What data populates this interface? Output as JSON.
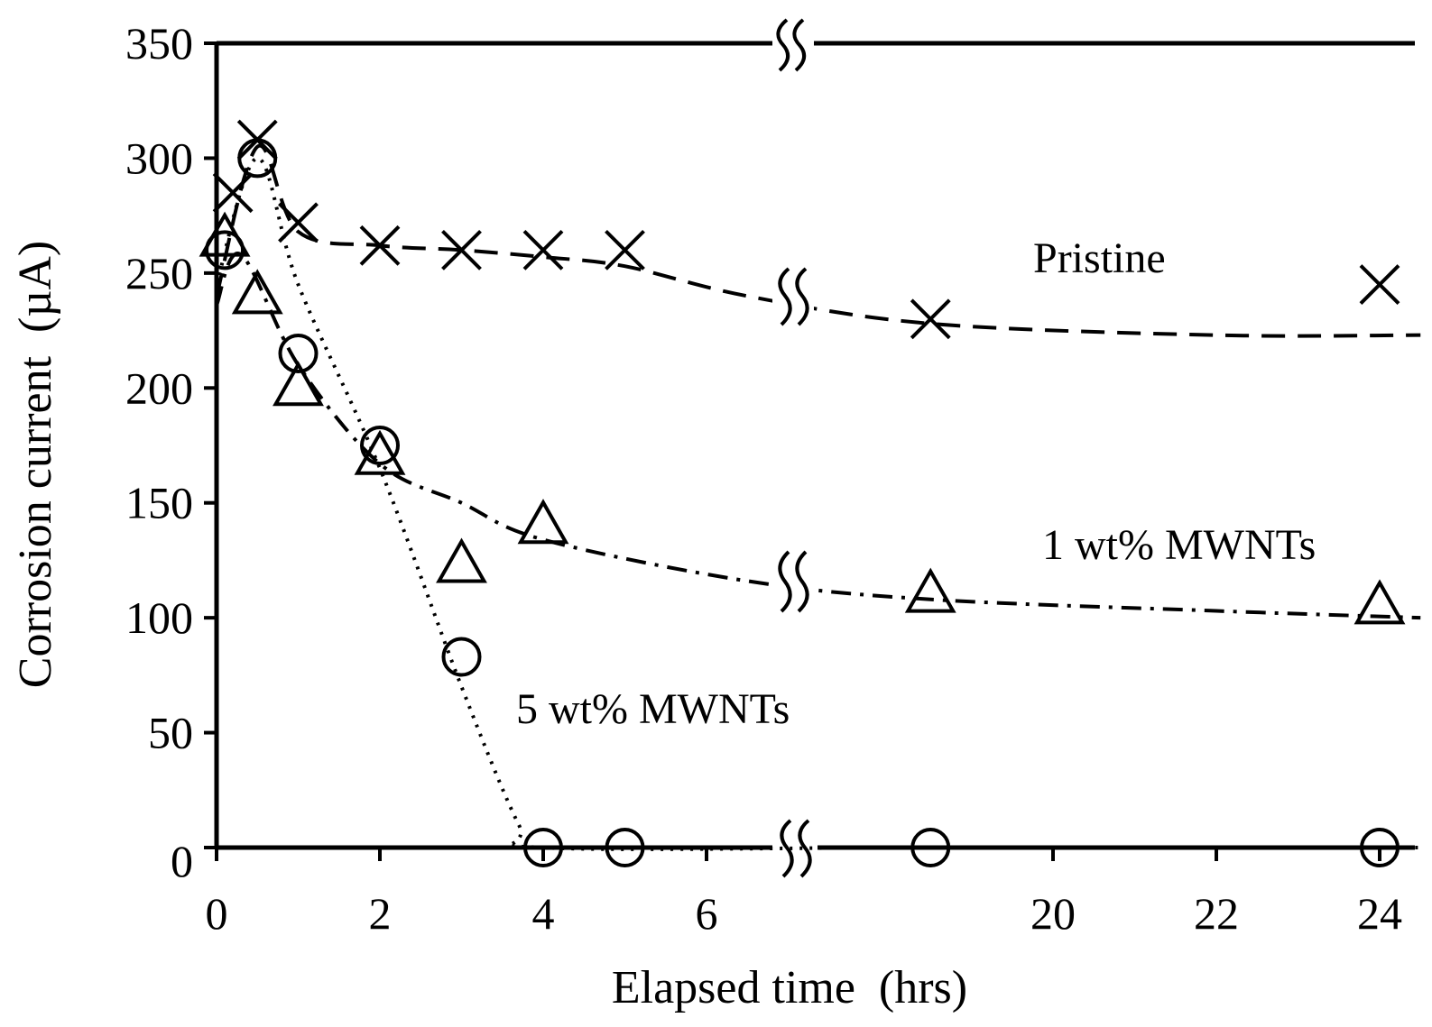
{
  "chart_data": {
    "type": "scatter",
    "title": "",
    "xlabel": "Elapsed time  (hrs)",
    "ylabel": "Corrosion current  (µA)",
    "ylim": [
      0,
      350
    ],
    "x_axis_break": "between 6 and 20 hrs",
    "x_ticks": [
      "0",
      "2",
      "4",
      "6",
      "20",
      "22",
      "24"
    ],
    "y_ticks": [
      "0",
      "50",
      "100",
      "150",
      "200",
      "250",
      "300",
      "350"
    ],
    "grid": false,
    "legend": "inline labels",
    "series": [
      {
        "name": "Pristine",
        "marker": "x",
        "line_style": "dashed",
        "x": [
          0.2,
          0.5,
          1,
          2,
          3,
          4,
          5,
          "~18.5",
          24
        ],
        "y": [
          285,
          308,
          272,
          262,
          260,
          260,
          260,
          230,
          245
        ]
      },
      {
        "name": "1 wt% MWNTs",
        "marker": "triangle",
        "line_style": "dash-dot",
        "x": [
          0.1,
          0.5,
          1,
          2,
          3,
          4,
          "~18.5",
          24
        ],
        "y": [
          265,
          240,
          200,
          170,
          123,
          140,
          110,
          105
        ]
      },
      {
        "name": "5 wt% MWNTs",
        "marker": "circle",
        "line_style": "dotted",
        "x": [
          0.1,
          0.5,
          1,
          2,
          3,
          4,
          5,
          "~18.5",
          24
        ],
        "y": [
          260,
          300,
          215,
          175,
          83,
          0,
          0,
          0,
          0
        ]
      }
    ]
  }
}
